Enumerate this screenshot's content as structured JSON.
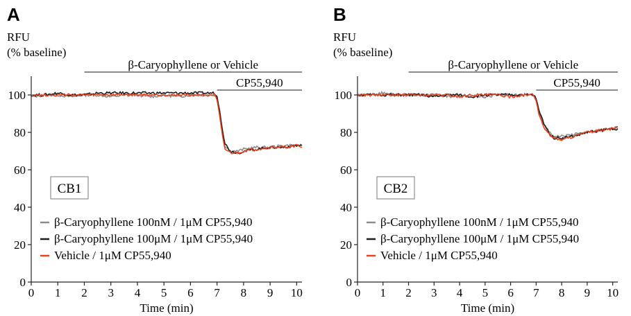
{
  "chart_data": [
    {
      "type": "line",
      "panel_label": "A",
      "ylabel_line1": "RFU",
      "ylabel_line2": "(% baseline)",
      "xlabel": "Time (min)",
      "xlim": [
        0,
        10.2
      ],
      "ylim": [
        0,
        110
      ],
      "xticks": [
        "0",
        "1",
        "2",
        "3",
        "4",
        "5",
        "6",
        "7",
        "8",
        "9",
        "10"
      ],
      "yticks": [
        "0",
        "20",
        "40",
        "60",
        "80",
        "100"
      ],
      "receptor_label": "CB1",
      "bars": [
        {
          "label": "β-Caryophyllene or Vehicle",
          "x_start": 2,
          "x_end": 10.2
        },
        {
          "label": "CP55,940",
          "x_start": 7,
          "x_end": 10.2
        }
      ],
      "series": [
        {
          "name": "β-Caryophyllene 100nM / 1μM CP55,940",
          "color": "#8c8c8c",
          "x": [
            0,
            0.5,
            1,
            1.5,
            2,
            2.5,
            3,
            3.5,
            4,
            4.5,
            5,
            5.5,
            6,
            6.5,
            6.9,
            7.0,
            7.1,
            7.2,
            7.3,
            7.5,
            7.8,
            8,
            8.5,
            9,
            9.5,
            10,
            10.2
          ],
          "y": [
            99,
            100,
            100,
            99,
            100,
            100,
            99,
            100,
            100,
            99,
            100,
            99,
            100,
            100,
            100,
            98,
            90,
            80,
            73,
            70,
            70,
            71,
            72,
            72,
            73,
            73,
            73
          ]
        },
        {
          "name": "β-Caryophyllene 100μM / 1μM CP55,940",
          "color": "#1a1a1a",
          "x": [
            0,
            0.5,
            1,
            1.5,
            2,
            2.5,
            3,
            3.5,
            4,
            4.5,
            5,
            5.5,
            6,
            6.5,
            6.9,
            7.0,
            7.1,
            7.2,
            7.3,
            7.5,
            7.8,
            8,
            8.5,
            9,
            9.5,
            10,
            10.2
          ],
          "y": [
            100,
            100,
            101,
            100,
            100,
            101,
            101,
            101,
            101,
            101,
            101,
            101,
            101,
            101,
            101,
            99,
            92,
            82,
            74,
            70,
            69,
            70,
            71,
            72,
            72,
            73,
            73
          ]
        },
        {
          "name": "Vehicle / 1μM CP55,940",
          "color": "#e8421e",
          "x": [
            0,
            0.5,
            1,
            1.5,
            2,
            2.5,
            3,
            3.5,
            4,
            4.5,
            5,
            5.5,
            6,
            6.5,
            6.9,
            7.0,
            7.1,
            7.2,
            7.3,
            7.5,
            7.8,
            8,
            8.5,
            9,
            9.5,
            10,
            10.2
          ],
          "y": [
            100,
            100,
            100,
            100,
            100,
            100,
            100,
            100,
            100,
            100,
            100,
            100,
            100,
            100,
            100,
            97,
            88,
            78,
            71,
            69,
            69,
            70,
            71,
            72,
            72,
            73,
            72
          ]
        }
      ]
    },
    {
      "type": "line",
      "panel_label": "B",
      "ylabel_line1": "RFU",
      "ylabel_line2": "(% baseline)",
      "xlabel": "Time (min)",
      "xlim": [
        0,
        10.2
      ],
      "ylim": [
        0,
        110
      ],
      "xticks": [
        "0",
        "1",
        "2",
        "3",
        "4",
        "5",
        "6",
        "7",
        "8",
        "9",
        "10"
      ],
      "yticks": [
        "0",
        "20",
        "40",
        "60",
        "80",
        "100"
      ],
      "receptor_label": "CB2",
      "bars": [
        {
          "label": "β-Caryophyllene or Vehicle",
          "x_start": 2,
          "x_end": 10.2
        },
        {
          "label": "CP55,940",
          "x_start": 7,
          "x_end": 10.2
        }
      ],
      "series": [
        {
          "name": "β-Caryophyllene 100nM / 1μM CP55,940",
          "color": "#8c8c8c",
          "x": [
            0,
            0.5,
            1,
            1.5,
            2,
            2.5,
            3,
            3.5,
            4,
            4.5,
            5,
            5.5,
            6,
            6.5,
            6.9,
            7.0,
            7.1,
            7.3,
            7.5,
            7.7,
            8,
            8.5,
            9,
            9.5,
            10,
            10.2
          ],
          "y": [
            100,
            100,
            101,
            100,
            100,
            100,
            100,
            99,
            100,
            100,
            99,
            100,
            100,
            100,
            100,
            97,
            91,
            84,
            80,
            78,
            78,
            79,
            80,
            81,
            82,
            83
          ]
        },
        {
          "name": "β-Caryophyllene 100μM / 1μM CP55,940",
          "color": "#1a1a1a",
          "x": [
            0,
            0.5,
            1,
            1.5,
            2,
            2.5,
            3,
            3.5,
            4,
            4.5,
            5,
            5.5,
            6,
            6.5,
            6.9,
            7.0,
            7.1,
            7.3,
            7.5,
            7.7,
            8,
            8.5,
            9,
            9.5,
            10,
            10.2
          ],
          "y": [
            100,
            100,
            100,
            100,
            100,
            100,
            99,
            100,
            100,
            99,
            100,
            100,
            100,
            100,
            100,
            98,
            92,
            85,
            80,
            77,
            77,
            78,
            80,
            81,
            82,
            82
          ]
        },
        {
          "name": "Vehicle / 1μM CP55,940",
          "color": "#e8421e",
          "x": [
            0,
            0.5,
            1,
            1.5,
            2,
            2.5,
            3,
            3.5,
            4,
            4.5,
            5,
            5.5,
            6,
            6.5,
            6.9,
            7.0,
            7.1,
            7.3,
            7.5,
            7.7,
            8,
            8.5,
            9,
            9.5,
            10,
            10.2
          ],
          "y": [
            100,
            100,
            100,
            100,
            100,
            100,
            100,
            100,
            99,
            100,
            100,
            100,
            99,
            100,
            100,
            97,
            90,
            83,
            79,
            77,
            76,
            78,
            80,
            81,
            82,
            83
          ]
        }
      ]
    }
  ]
}
